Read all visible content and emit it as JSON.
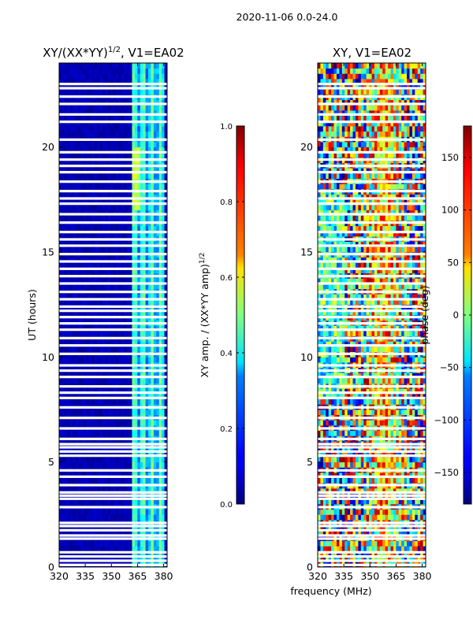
{
  "figure": {
    "suptitle": "2020-11-06 0.0-24.0",
    "xlabel_shared": "frequency (MHz)"
  },
  "chart_data": [
    {
      "type": "heatmap",
      "title_main": "XY/(XX*YY)",
      "title_exp": "1/2",
      "title_tail": ", V1=EA02",
      "ylabel": "UT (hours)",
      "xlim": [
        320,
        382
      ],
      "ylim": [
        0,
        24
      ],
      "xticks": [
        320,
        335,
        350,
        365,
        380
      ],
      "yticks": [
        0,
        5,
        10,
        15,
        20
      ],
      "colormap": "jet",
      "colorbar": {
        "label_main": "XY amp. / (XX*YY amp)",
        "label_exp": "1/2",
        "range": [
          0.0,
          1.0
        ],
        "ticks": [
          "0.0",
          "0.2",
          "0.4",
          "0.6",
          "0.8",
          "1.0"
        ],
        "tick_values": [
          0.0,
          0.2,
          0.4,
          0.6,
          0.8,
          1.0
        ]
      },
      "flagged_hours": [
        0.1,
        0.3,
        0.5,
        0.7,
        1.35,
        1.5,
        1.75,
        1.95,
        2.1,
        2.85,
        3.25,
        3.4,
        3.55,
        3.9,
        4.3,
        4.6,
        5.3,
        5.5,
        5.7,
        5.85,
        6.1,
        6.6,
        7.1,
        7.6,
        8.05,
        8.3,
        8.6,
        9.05,
        9.35,
        9.6,
        10.15,
        10.55,
        10.9,
        11.3,
        11.6,
        11.9,
        12.2,
        12.4,
        12.75,
        13.1,
        13.5,
        13.85,
        14.2,
        14.55,
        14.9,
        15.3,
        15.6,
        15.95,
        16.4,
        16.8,
        17.3,
        17.55,
        17.9,
        18.35,
        18.8,
        19.1,
        19.4,
        19.75,
        20.35,
        21.2,
        21.55,
        22.05,
        22.4,
        22.8,
        23.0
      ],
      "description": "Normalized cross-correlation amplitude: near 0 below ~362 MHz, with elevated 0.3-0.5 values in bands between ~363 and ~380 MHz"
    },
    {
      "type": "heatmap",
      "title_main": "XY, V1=EA02",
      "ylabel": "",
      "xlim": [
        320,
        382
      ],
      "ylim": [
        0,
        24
      ],
      "xticks": [
        320,
        335,
        350,
        365,
        380
      ],
      "yticks": [
        0,
        5,
        10,
        15,
        20
      ],
      "colormap": "jet",
      "colorbar": {
        "label_main": "phase (deg)",
        "range": [
          -180,
          180
        ],
        "ticks": [
          "−150",
          "−100",
          "−50",
          "0",
          "50",
          "100",
          "150"
        ],
        "tick_values": [
          -150,
          -100,
          -50,
          0,
          50,
          100,
          150
        ]
      },
      "flagged_hours": [
        0.1,
        0.3,
        0.5,
        0.7,
        1.35,
        1.5,
        1.75,
        1.95,
        2.1,
        2.85,
        3.25,
        3.4,
        3.55,
        3.9,
        4.3,
        4.6,
        5.3,
        5.5,
        5.7,
        5.85,
        6.1,
        6.6,
        7.1,
        7.6,
        8.05,
        8.3,
        8.6,
        9.05,
        9.35,
        9.6,
        10.15,
        10.55,
        10.9,
        11.3,
        11.6,
        11.9,
        12.2,
        12.4,
        12.75,
        13.1,
        13.5,
        13.85,
        14.2,
        14.55,
        14.9,
        15.3,
        15.6,
        15.95,
        16.4,
        16.8,
        17.3,
        17.55,
        17.9,
        18.35,
        18.8,
        19.1,
        19.4,
        19.75,
        20.35,
        21.2,
        21.55,
        22.05,
        22.4,
        22.8,
        23.0
      ],
      "description": "Cross-correlation phase in degrees, noisy full-range values with red/orange structure near 350-365 MHz"
    }
  ]
}
